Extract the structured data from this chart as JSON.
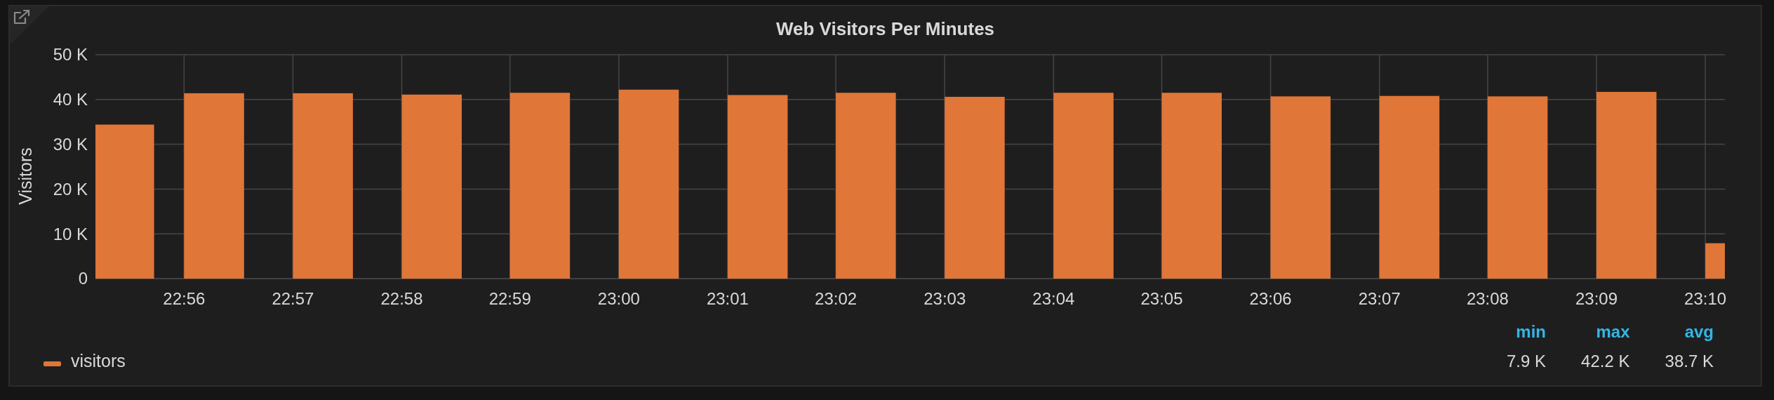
{
  "chart_data": {
    "type": "bar",
    "title": "Web Visitors Per Minutes",
    "ylabel": "Visitors",
    "x": [
      22.9242,
      22.9379,
      22.9546,
      22.9713,
      22.9879,
      23.0046,
      23.0213,
      23.0379,
      23.0546,
      23.0713,
      23.0879,
      23.1046,
      23.1213,
      23.1379,
      23.1546,
      23.1682
    ],
    "series": [
      {
        "name": "visitors",
        "color": "#e07638",
        "values": [
          34400,
          41400,
          41400,
          41100,
          41500,
          42200,
          41000,
          41500,
          40600,
          41500,
          41500,
          40700,
          40800,
          40700,
          41700,
          7900
        ]
      }
    ],
    "xlim": [
      22.9197,
      23.1697
    ],
    "xticks": [
      {
        "value": 22.9333,
        "label": "22:56"
      },
      {
        "value": 22.95,
        "label": "22:57"
      },
      {
        "value": 22.9667,
        "label": "22:58"
      },
      {
        "value": 22.9833,
        "label": "22:59"
      },
      {
        "value": 23,
        "label": "23:00"
      },
      {
        "value": 23.0167,
        "label": "23:01"
      },
      {
        "value": 23.0333,
        "label": "23:02"
      },
      {
        "value": 23.05,
        "label": "23:03"
      },
      {
        "value": 23.0667,
        "label": "23:04"
      },
      {
        "value": 23.0833,
        "label": "23:05"
      },
      {
        "value": 23.1,
        "label": "23:06"
      },
      {
        "value": 23.1167,
        "label": "23:07"
      },
      {
        "value": 23.1333,
        "label": "23:08"
      },
      {
        "value": 23.15,
        "label": "23:09"
      },
      {
        "value": 23.1667,
        "label": "23:10"
      }
    ],
    "ylim": [
      0,
      50000
    ],
    "yticks": [
      0,
      {
        "value": 10000,
        "label": "10 K"
      },
      {
        "value": 20000,
        "label": "20 K"
      },
      {
        "value": 30000,
        "label": "30 K"
      },
      {
        "value": 40000,
        "label": "40 K"
      },
      {
        "value": 50000,
        "label": "50 K"
      }
    ],
    "grid": true,
    "legend": "bottom left",
    "annotations": [
      "min",
      "max",
      "avg",
      "7.9 K",
      "42.2 K",
      "38.7 K"
    ]
  }
}
